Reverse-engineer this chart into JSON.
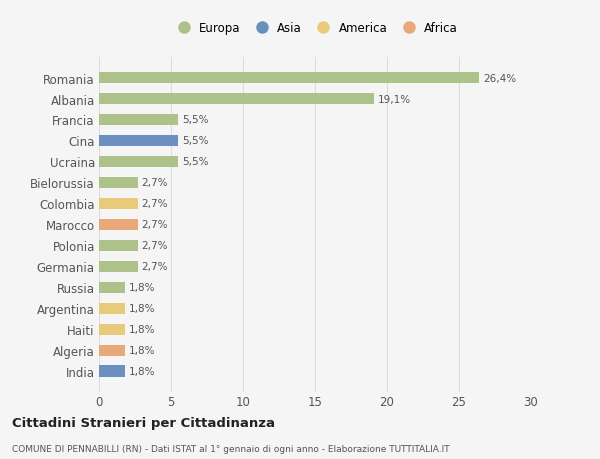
{
  "categories": [
    "Romania",
    "Albania",
    "Francia",
    "Cina",
    "Ucraina",
    "Bielorussia",
    "Colombia",
    "Marocco",
    "Polonia",
    "Germania",
    "Russia",
    "Argentina",
    "Haiti",
    "Algeria",
    "India"
  ],
  "values": [
    26.4,
    19.1,
    5.5,
    5.5,
    5.5,
    2.7,
    2.7,
    2.7,
    2.7,
    2.7,
    1.8,
    1.8,
    1.8,
    1.8,
    1.8
  ],
  "labels": [
    "26,4%",
    "19,1%",
    "5,5%",
    "5,5%",
    "5,5%",
    "2,7%",
    "2,7%",
    "2,7%",
    "2,7%",
    "2,7%",
    "1,8%",
    "1,8%",
    "1,8%",
    "1,8%",
    "1,8%"
  ],
  "colors": [
    "#adc289",
    "#adc289",
    "#adc289",
    "#6b8fbf",
    "#adc289",
    "#adc289",
    "#e8ca7a",
    "#e8a87a",
    "#adc289",
    "#adc289",
    "#adc289",
    "#e8ca7a",
    "#e8ca7a",
    "#e8a87a",
    "#6b8fbf"
  ],
  "continent_colors": {
    "Europa": "#adc289",
    "Asia": "#6b8fbf",
    "America": "#e8ca7a",
    "Africa": "#e8a87a"
  },
  "xlim": [
    0,
    30
  ],
  "xticks": [
    0,
    5,
    10,
    15,
    20,
    25,
    30
  ],
  "title": "Cittadini Stranieri per Cittadinanza",
  "subtitle": "COMUNE DI PENNABILLI (RN) - Dati ISTAT al 1° gennaio di ogni anno - Elaborazione TUTTITALIA.IT",
  "background_color": "#f5f5f5",
  "bar_height": 0.55,
  "grid_color": "#dddddd"
}
